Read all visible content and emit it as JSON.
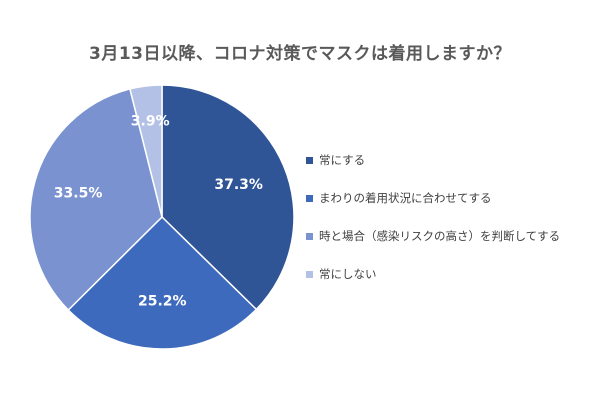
{
  "chart_data": {
    "type": "pie",
    "title": "3月13日以降、コロナ対策でマスクは着用しますか？",
    "categories": [
      "常にする",
      "まわりの着用状況に合わせてする",
      "時と場合（感染リスクの高さ）を判断してする",
      "常にしない"
    ],
    "values": [
      37.3,
      25.2,
      33.5,
      3.9
    ],
    "data_labels": [
      "37.3%",
      "25.2%",
      "33.5%",
      "3.9%"
    ],
    "colors": [
      "#2f5597",
      "#3d6abd",
      "#7a92d0",
      "#b4c1e6"
    ],
    "legend_position": "right",
    "start_angle": "top",
    "direction": "clockwise"
  }
}
